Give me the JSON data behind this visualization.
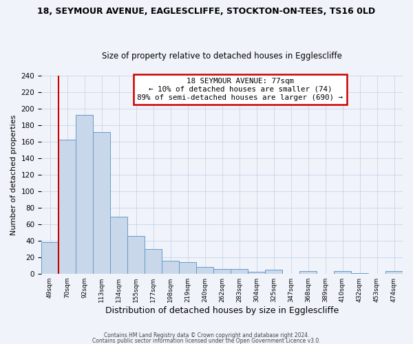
{
  "title": "18, SEYMOUR AVENUE, EAGLESCLIFFE, STOCKTON-ON-TEES, TS16 0LD",
  "subtitle": "Size of property relative to detached houses in Egglescliffe",
  "xlabel": "Distribution of detached houses by size in Egglescliffe",
  "ylabel": "Number of detached properties",
  "bin_labels": [
    "49sqm",
    "70sqm",
    "92sqm",
    "113sqm",
    "134sqm",
    "155sqm",
    "177sqm",
    "198sqm",
    "219sqm",
    "240sqm",
    "262sqm",
    "283sqm",
    "304sqm",
    "325sqm",
    "347sqm",
    "368sqm",
    "389sqm",
    "410sqm",
    "432sqm",
    "453sqm",
    "474sqm"
  ],
  "bar_values": [
    38,
    163,
    193,
    172,
    69,
    46,
    30,
    16,
    14,
    8,
    6,
    6,
    2,
    5,
    0,
    3,
    0,
    3,
    1,
    0,
    3
  ],
  "bar_color": "#c8d8ea",
  "bar_edge_color": "#6699cc",
  "vline_color": "#cc0000",
  "vline_x": 0.5,
  "ylim": [
    0,
    240
  ],
  "yticks": [
    0,
    20,
    40,
    60,
    80,
    100,
    120,
    140,
    160,
    180,
    200,
    220,
    240
  ],
  "annotation_text": "18 SEYMOUR AVENUE: 77sqm\n← 10% of detached houses are smaller (74)\n89% of semi-detached houses are larger (690) →",
  "annotation_box_color": "#ffffff",
  "annotation_box_edge_color": "#cc0000",
  "footer_line1": "Contains HM Land Registry data © Crown copyright and database right 2024.",
  "footer_line2": "Contains public sector information licensed under the Open Government Licence v3.0.",
  "background_color": "#f0f4fa",
  "grid_color": "#c8d4e8",
  "title_fontsize": 9,
  "subtitle_fontsize": 8.5,
  "ylabel_fontsize": 8,
  "xlabel_fontsize": 9
}
